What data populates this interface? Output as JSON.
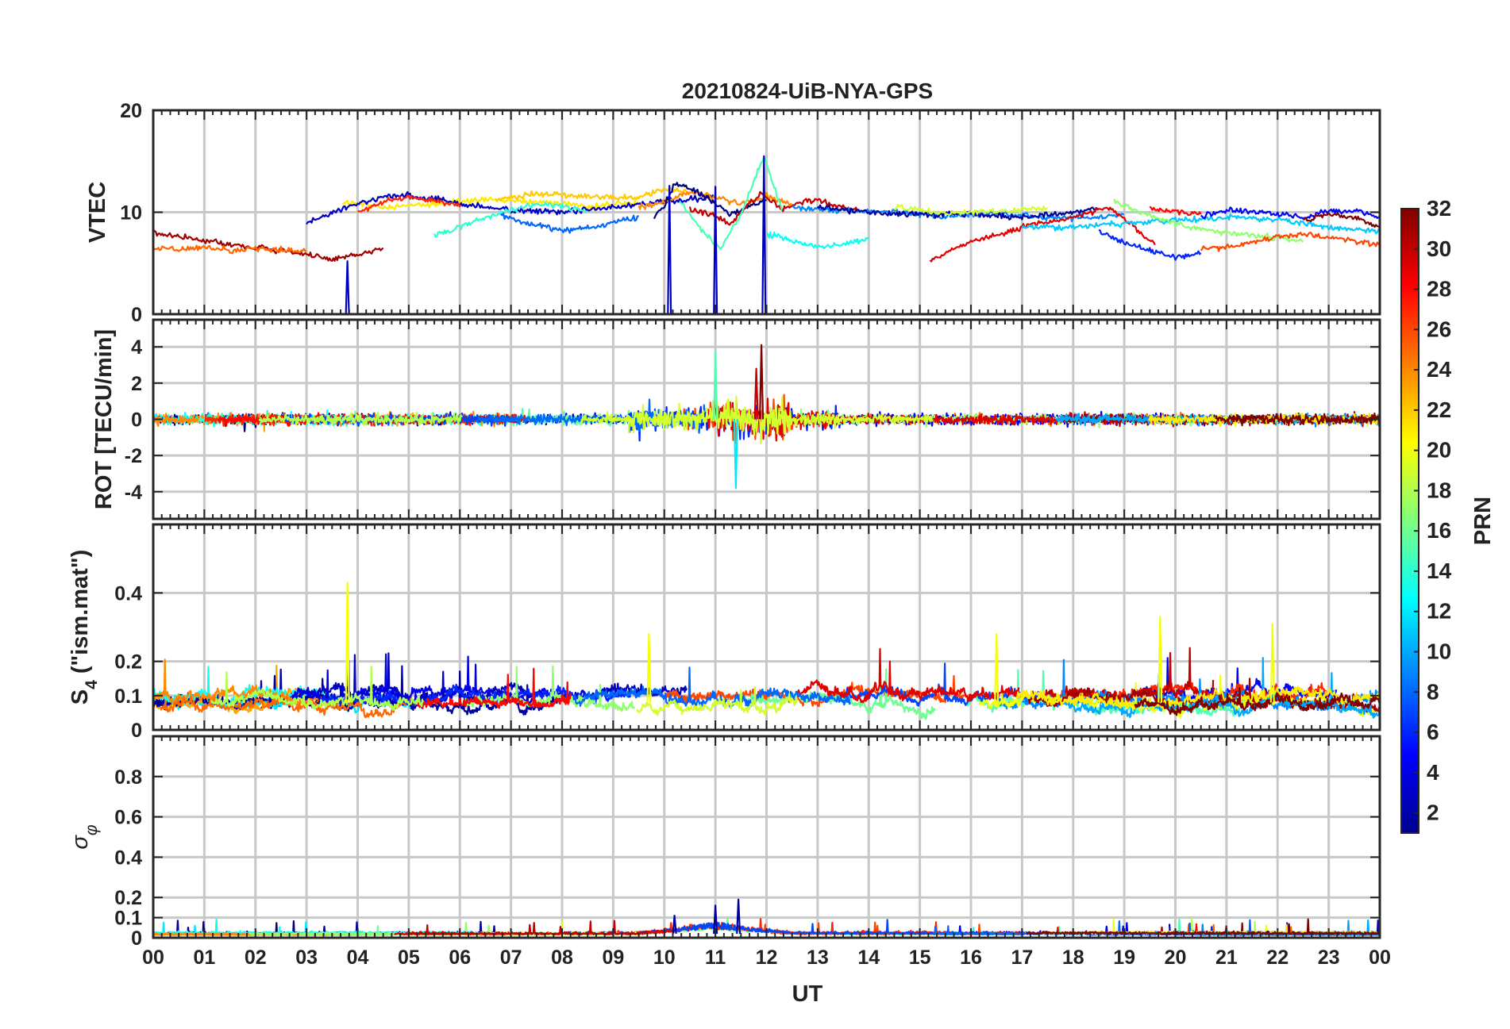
{
  "chart_data": {
    "type": "line",
    "title": "20210824-UiB-NYA-GPS",
    "xlabel": "UT",
    "xlim": [
      0,
      24
    ],
    "x_ticks": [
      0,
      1,
      2,
      3,
      4,
      5,
      6,
      7,
      8,
      9,
      10,
      11,
      12,
      13,
      14,
      15,
      16,
      17,
      18,
      19,
      20,
      21,
      22,
      23,
      24
    ],
    "x_tick_labels": [
      "00",
      "01",
      "02",
      "03",
      "04",
      "05",
      "06",
      "07",
      "08",
      "09",
      "10",
      "11",
      "12",
      "13",
      "14",
      "15",
      "16",
      "17",
      "18",
      "19",
      "20",
      "21",
      "22",
      "23",
      "00"
    ],
    "grid": true,
    "colorbar": {
      "label": "PRN",
      "range": [
        1,
        32
      ],
      "colormap": "jet",
      "ticks": [
        2,
        4,
        6,
        8,
        10,
        12,
        14,
        16,
        18,
        20,
        22,
        24,
        26,
        28,
        30,
        32
      ],
      "tick_labels": [
        "2",
        "4",
        "6",
        "8",
        "10",
        "12",
        "14",
        "16",
        "18",
        "20",
        "22",
        "24",
        "26",
        "28",
        "30",
        "32"
      ],
      "placement": "right"
    },
    "panels": [
      {
        "id": "vtec",
        "ylabel": "VTEC",
        "ylim": [
          0,
          20
        ],
        "y_ticks": [
          0,
          10,
          20
        ],
        "y_tick_labels": [
          "0",
          "10",
          "20"
        ],
        "features": [
          {
            "x": 11.0,
            "y": 12.5
          },
          {
            "x": 11.95,
            "y": 15.5
          },
          {
            "x": 10.1,
            "y": 12.6
          },
          {
            "x": 3.8,
            "y": 5.2
          }
        ],
        "approx_series": [
          {
            "prn": 31,
            "x": [
              0,
              1,
              2,
              3,
              3.5,
              4,
              4.5
            ],
            "y": [
              8,
              7.2,
              6.5,
              6,
              5.4,
              5.8,
              6.5
            ]
          },
          {
            "prn": 25,
            "x": [
              0,
              0.5,
              1,
              1.5,
              2,
              2.5,
              3
            ],
            "y": [
              6.5,
              6.3,
              6.6,
              6.2,
              6.5,
              6.3,
              6.2
            ]
          },
          {
            "prn": 21,
            "x": [
              3.7,
              4.5,
              5.5,
              6.5,
              7.5,
              8.5,
              9.5
            ],
            "y": [
              11,
              10.5,
              10.8,
              11.3,
              11,
              10.6,
              11
            ]
          },
          {
            "prn": 3,
            "x": [
              3,
              3.5,
              4,
              4.5,
              5,
              5.5,
              6,
              6.5,
              7,
              8,
              9,
              10,
              11
            ],
            "y": [
              9,
              10,
              10.8,
              11.5,
              11.7,
              11.3,
              10.8,
              10.5,
              10.2,
              10,
              10.5,
              11,
              11.5
            ]
          },
          {
            "prn": 27,
            "x": [
              4,
              4.5,
              5,
              5.5,
              6
            ],
            "y": [
              10,
              11,
              11.5,
              11.2,
              10.5
            ]
          },
          {
            "prn": 14,
            "x": [
              5.5,
              6,
              6.5,
              7,
              7.5,
              8,
              8.5
            ],
            "y": [
              7.8,
              8.5,
              9.5,
              10.2,
              10.8,
              10.6,
              10
            ]
          },
          {
            "prn": 8,
            "x": [
              6.8,
              7.2,
              7.6,
              8,
              8.5,
              9,
              9.5
            ],
            "y": [
              9.8,
              9,
              8.6,
              8.2,
              8.5,
              9,
              9.6
            ]
          },
          {
            "prn": 22,
            "x": [
              6.7,
              7.5,
              8.5,
              9.5,
              10,
              10.5
            ],
            "y": [
              11.3,
              11.8,
              11.6,
              11.4,
              12.3,
              12
            ]
          },
          {
            "prn": 24,
            "x": [
              9.5,
              10,
              10.5,
              11,
              11.5,
              12,
              12.5
            ],
            "y": [
              10.5,
              11,
              12,
              11.5,
              10.8,
              11.6,
              10.7
            ]
          },
          {
            "prn": 1,
            "x": [
              9.8,
              10,
              10.2,
              10.5,
              10.7,
              11,
              11.3,
              11.6,
              12
            ],
            "y": [
              9.6,
              10.5,
              12.8,
              12.4,
              11.8,
              10.8,
              9.8,
              10.5,
              11.2
            ]
          },
          {
            "prn": 30,
            "x": [
              10.5,
              11,
              11.3,
              11.6,
              11.9,
              12.3,
              12.8,
              13.3,
              13.8
            ],
            "y": [
              10.4,
              9.6,
              8.8,
              10.6,
              11.8,
              10.3,
              11.2,
              10.8,
              10.2
            ]
          },
          {
            "prn": 15,
            "x": [
              10.3,
              10.7,
              11.1,
              11.5,
              11.95,
              12.3
            ],
            "y": [
              11.1,
              8.4,
              6.4,
              9.8,
              15.5,
              10.2
            ]
          },
          {
            "prn": 13,
            "x": [
              12,
              12.5,
              13,
              13.5,
              14
            ],
            "y": [
              8,
              7.2,
              6.6,
              6.8,
              7.5
            ]
          },
          {
            "prn": 9,
            "x": [
              12.5,
              13.5,
              14.5,
              15.5,
              16.5,
              17.5,
              18.5,
              19
            ],
            "y": [
              10.5,
              10.2,
              10,
              9.6,
              9.9,
              9.5,
              9.5,
              9.8
            ]
          },
          {
            "prn": 2,
            "x": [
              13,
              14,
              15,
              16,
              17,
              18,
              18.5
            ],
            "y": [
              10.5,
              10,
              9.8,
              9.8,
              9.5,
              10,
              10.3
            ]
          },
          {
            "prn": 19,
            "x": [
              14.5,
              15.5,
              16.5,
              17.5
            ],
            "y": [
              10.5,
              9.9,
              10.1,
              10.4
            ]
          },
          {
            "prn": 29,
            "x": [
              15.2,
              15.7,
              16.2,
              16.7,
              17.2,
              17.7,
              18.2,
              18.7,
              19.2,
              19.6
            ],
            "y": [
              5.2,
              6.5,
              7.4,
              8,
              8.8,
              9.2,
              9.8,
              10.5,
              8.5,
              6.8
            ]
          },
          {
            "prn": 6,
            "x": [
              18.5,
              19,
              19.5,
              20,
              20.5
            ],
            "y": [
              8.2,
              7,
              6.2,
              5.6,
              6
            ]
          },
          {
            "prn": 11,
            "x": [
              17,
              18,
              19,
              20,
              21,
              22,
              23,
              24
            ],
            "y": [
              8.5,
              8.6,
              8.9,
              9.2,
              9.5,
              9.3,
              8.5,
              8.2
            ]
          },
          {
            "prn": 17,
            "x": [
              18.8,
              19.3,
              19.8,
              20.3,
              21,
              22,
              22.5
            ],
            "y": [
              11.2,
              10,
              9.2,
              8.5,
              8,
              7.5,
              7.1
            ]
          },
          {
            "prn": 26,
            "x": [
              20.5,
              21,
              21.5,
              22,
              22.5,
              23,
              23.5,
              24
            ],
            "y": [
              6.4,
              6.6,
              7,
              7.6,
              7.9,
              7.5,
              7.2,
              6.8
            ]
          },
          {
            "prn": 28,
            "x": [
              19.5,
              20,
              20.5
            ],
            "y": [
              10.4,
              10.1,
              9.8
            ]
          },
          {
            "prn": 5,
            "x": [
              20.5,
              21,
              21.5,
              22,
              22.5,
              23,
              23.5,
              24
            ],
            "y": [
              9.6,
              10.2,
              10.1,
              9.8,
              9.5,
              10.1,
              10.2,
              9.5
            ]
          },
          {
            "prn": 32,
            "x": [
              22.5,
              23,
              23.5,
              24
            ],
            "y": [
              9.2,
              9.8,
              9.5,
              8.5
            ]
          }
        ]
      },
      {
        "id": "rot",
        "ylabel": "ROT [TECU/min]",
        "ylim": [
          -5.5,
          5.5
        ],
        "y_ticks": [
          -4,
          -2,
          0,
          2,
          4
        ],
        "y_tick_labels": [
          "-4",
          "-2",
          "0",
          "2",
          "4"
        ],
        "features": [
          {
            "x": 11.4,
            "y": -3.8
          },
          {
            "x": 11.9,
            "y": 4.1
          },
          {
            "x": 11.0,
            "y": 3.7
          },
          {
            "x": 11.8,
            "y": 2.8
          }
        ]
      },
      {
        "id": "s4",
        "ylabel": "S4 (\"ism.mat\")",
        "ylabel_main": "S",
        "ylabel_sub": "4",
        "ylabel_rest": " (\"ism.mat\")",
        "ylim": [
          0,
          0.6
        ],
        "y_ticks": [
          0,
          0.1,
          0.2,
          0.4
        ],
        "y_tick_labels": [
          "0",
          "0.1",
          "0.2",
          "0.4"
        ],
        "features": [
          {
            "x": 3.8,
            "y": 0.43
          },
          {
            "x": 19.7,
            "y": 0.33
          },
          {
            "x": 21.9,
            "y": 0.31
          },
          {
            "x": 9.7,
            "y": 0.28
          },
          {
            "x": 16.5,
            "y": 0.28
          }
        ]
      },
      {
        "id": "sigma",
        "ylabel": "σφ",
        "ylabel_main": "σ",
        "ylabel_sub": "φ",
        "ylim": [
          0,
          1
        ],
        "y_ticks": [
          0,
          0.1,
          0.2,
          0.4,
          0.6,
          0.8
        ],
        "y_tick_labels": [
          "0",
          "0.1",
          "0.2",
          "0.4",
          "0.6",
          "0.8"
        ],
        "features": [
          {
            "x": 11.45,
            "y": 0.19
          },
          {
            "x": 11.0,
            "y": 0.16
          },
          {
            "x": 10.2,
            "y": 0.11
          }
        ]
      }
    ]
  }
}
